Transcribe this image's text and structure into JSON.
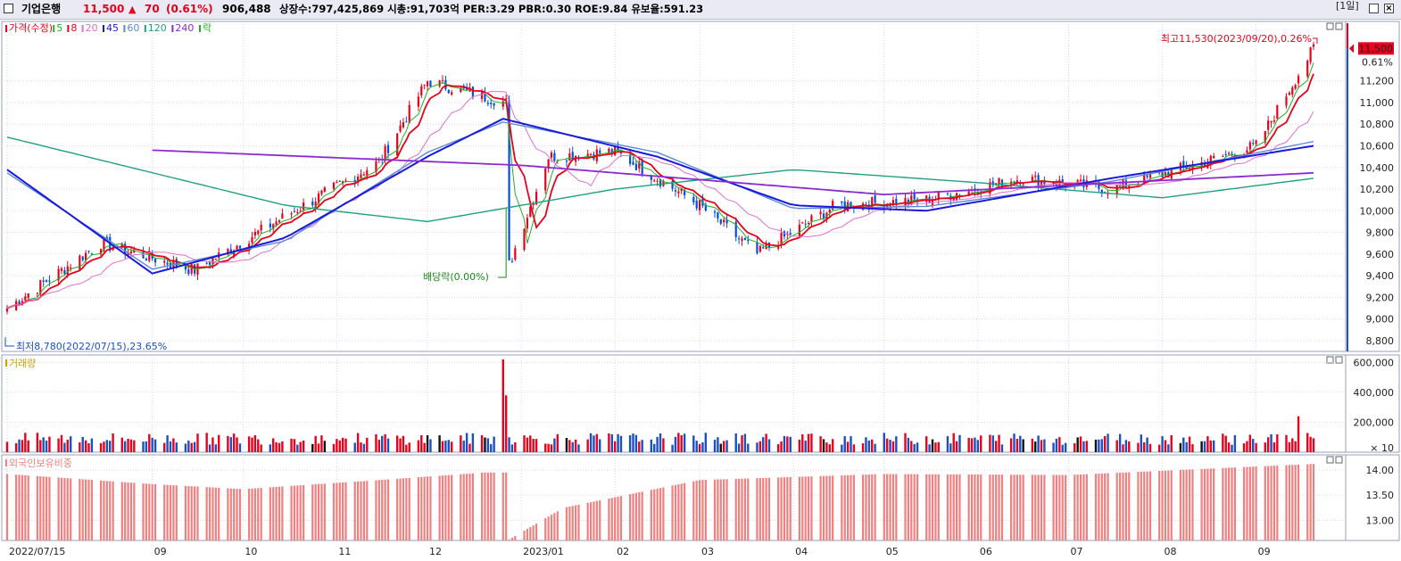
{
  "header": {
    "name": "기업은행",
    "price": "11,500",
    "change_arrow": "▲",
    "change": "70",
    "change_pct": "(0.61%)",
    "volume": "906,488",
    "info": "상장수:797,425,869 시총:91,703억 PER:3.29 PBR:0.30 ROE:9.84 유보율:591.23",
    "period": "[1일]",
    "colors": {
      "name": "#000000",
      "price": "#e8001c",
      "info": "#000000"
    }
  },
  "chart_data": [
    {
      "type": "candlestick",
      "panel": "price",
      "legend": [
        {
          "label": "가격(수정)",
          "color": "#e8001c"
        },
        {
          "label": "5",
          "color": "#22b022"
        },
        {
          "label": "8",
          "color": "#e8001c"
        },
        {
          "label": "20",
          "color": "#e070d0"
        },
        {
          "label": "45",
          "color": "#1a1adc"
        },
        {
          "label": "60",
          "color": "#5a8ad0"
        },
        {
          "label": "120",
          "color": "#20a080"
        },
        {
          "label": "240",
          "color": "#8a2ad0"
        },
        {
          "label": "락",
          "color": "#22b022"
        }
      ],
      "ylim": [
        8700,
        11750
      ],
      "yticks": [
        "11,200",
        "11,000",
        "10,800",
        "10,600",
        "10,400",
        "10,200",
        "10,000",
        "9,800",
        "9,600",
        "9,400",
        "9,200",
        "9,000",
        "8,800"
      ],
      "ytick_values": [
        11200,
        11000,
        10800,
        10600,
        10400,
        10200,
        10000,
        9800,
        9600,
        9400,
        9200,
        9000,
        8800
      ],
      "current_price_label": "11,500",
      "current_change_label": "0.61%",
      "annotations": {
        "high": "최고11,530(2023/09/20),0.26%",
        "low": "최저8,780(2022/07/15),23.65%",
        "dividend": "배당락(0.00%)"
      },
      "keypoints": {
        "dates": [
          "2022/07/15",
          "2022/08/15",
          "2022/09/15",
          "2022/10/15",
          "2022/11/15",
          "2022/12/01",
          "2022/12/20",
          "2022/12/27",
          "2022/12/28",
          "2023/01/10",
          "2023/02/01",
          "2023/03/01",
          "2023/03/20",
          "2023/04/15",
          "2023/05/15",
          "2023/06/15",
          "2023/07/15",
          "2023/08/15",
          "2023/09/01",
          "2023/09/20"
        ],
        "close": [
          9100,
          9700,
          9450,
          9950,
          10450,
          11200,
          11050,
          11000,
          9500,
          10500,
          10550,
          10050,
          9600,
          10050,
          10100,
          10300,
          10200,
          10450,
          10600,
          11500
        ]
      },
      "moving_averages": {
        "ma45_keypoints": {
          "dates": [
            "2022/07/15",
            "2022/09/01",
            "2022/10/15",
            "2022/12/01",
            "2022/12/26",
            "2023/02/15",
            "2023/04/01",
            "2023/05/15",
            "2023/07/15",
            "2023/09/20"
          ],
          "values": [
            10380,
            9420,
            9750,
            10500,
            10850,
            10500,
            10050,
            10000,
            10300,
            10600
          ]
        },
        "ma120_keypoints": {
          "dates": [
            "2022/07/15",
            "2022/10/15",
            "2022/12/01",
            "2023/02/01",
            "2023/04/01",
            "2023/06/01",
            "2023/08/01",
            "2023/09/20"
          ],
          "values": [
            10680,
            10050,
            9900,
            10200,
            10380,
            10260,
            10120,
            10300
          ]
        },
        "ma240_keypoints": {
          "dates": [
            "2022/09/01",
            "2023/01/01",
            "2023/05/01",
            "2023/09/20"
          ],
          "values": [
            10560,
            10420,
            10150,
            10350
          ]
        }
      }
    },
    {
      "type": "bar",
      "panel": "volume",
      "legend": [
        {
          "label": "거래량",
          "color": "#c8a000"
        }
      ],
      "ylim": [
        0,
        650000
      ],
      "yticks": [
        "600,000",
        "400,000",
        "200,000"
      ],
      "ytick_values": [
        600000,
        400000,
        200000
      ],
      "unit_label": "× 10",
      "keypoints": {
        "dates": [
          "2022/12/26",
          "2022/12/27",
          "2023/09/15"
        ],
        "values": [
          620000,
          380000,
          240000
        ]
      },
      "typical_value": 90000
    },
    {
      "type": "bar",
      "panel": "foreign_holding",
      "legend": [
        {
          "label": "외국인보유비중",
          "color": "#f08080"
        }
      ],
      "ylim": [
        12.6,
        14.3
      ],
      "yticks": [
        "14.00",
        "13.50",
        "13.00"
      ],
      "ytick_values": [
        14.0,
        13.5,
        13.0
      ],
      "keypoints": {
        "dates": [
          "2022/07/15",
          "2022/09/01",
          "2022/10/01",
          "2022/11/15",
          "2022/12/20",
          "2022/12/27",
          "2022/12/28",
          "2023/01/15",
          "2023/03/01",
          "2023/05/01",
          "2023/07/01",
          "2023/09/20"
        ],
        "values": [
          13.92,
          13.72,
          13.62,
          13.8,
          13.95,
          13.95,
          12.62,
          13.25,
          13.8,
          13.92,
          13.9,
          14.12
        ]
      }
    }
  ],
  "xaxis": {
    "labels": [
      "2022/07/15",
      "09",
      "10",
      "11",
      "12",
      "2023/01",
      "02",
      "03",
      "04",
      "05",
      "06",
      "07",
      "08",
      "09"
    ],
    "label_dates": [
      "2022/07/15",
      "2022/09/01",
      "2022/10/01",
      "2022/11/01",
      "2022/12/01",
      "2023/01/01",
      "2023/02/01",
      "2023/03/01",
      "2023/04/01",
      "2023/05/01",
      "2023/06/01",
      "2023/07/01",
      "2023/08/01",
      "2023/09/01"
    ]
  }
}
